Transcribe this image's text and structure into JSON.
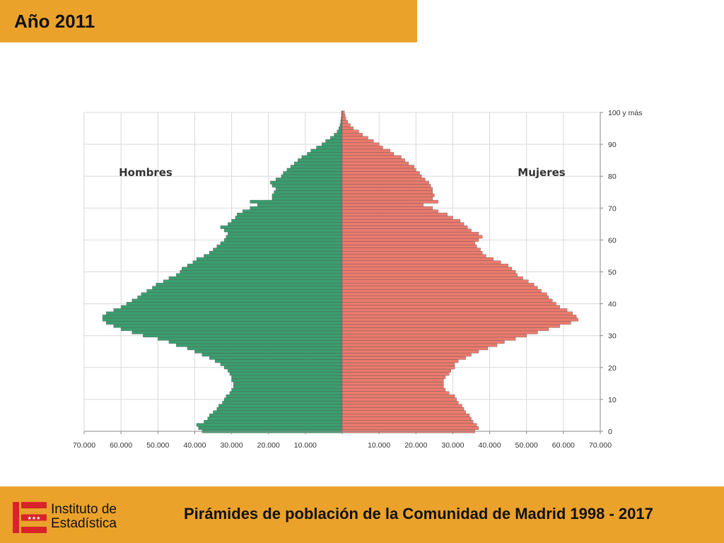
{
  "header": {
    "title": "Año 2011"
  },
  "footer": {
    "caption": "Pirámides de población de la Comunidad de Madrid  1998 - 2017",
    "logo_line1": "Instituto de",
    "logo_line2": "Estadística"
  },
  "colors": {
    "banner": "#eba22b",
    "men": "#3a9e6e",
    "women": "#ec7a6d",
    "bar_edge": "#555555",
    "grid": "#d9d9d9"
  },
  "chart_data": {
    "type": "bar",
    "orientation": "horizontal",
    "subtype": "population-pyramid",
    "title": "",
    "labels": {
      "left": "Hombres",
      "right": "Mujeres"
    },
    "y_axis": {
      "position": "right",
      "min": 0,
      "max": 100,
      "ticks": [
        0,
        10,
        20,
        30,
        40,
        50,
        60,
        70,
        80,
        90,
        100
      ],
      "tick_labels": [
        "0",
        "10",
        "20",
        "30",
        "40",
        "50",
        "60",
        "70",
        "80",
        "90",
        "100 y más"
      ]
    },
    "x_axis": {
      "max": 70000,
      "ticks": [
        70000,
        60000,
        50000,
        40000,
        30000,
        20000,
        10000,
        0,
        10000,
        20000,
        30000,
        40000,
        50000,
        60000,
        70000
      ],
      "tick_labels": [
        "70.000",
        "60.000",
        "50.000",
        "40.000",
        "30.000",
        "20.000",
        "10.000",
        "",
        "10.000",
        "20.000",
        "30.000",
        "40.000",
        "50.000",
        "60.000",
        "70.000"
      ]
    },
    "grid": true,
    "ages": [
      0,
      1,
      2,
      3,
      4,
      5,
      6,
      7,
      8,
      9,
      10,
      11,
      12,
      13,
      14,
      15,
      16,
      17,
      18,
      19,
      20,
      21,
      22,
      23,
      24,
      25,
      26,
      27,
      28,
      29,
      30,
      31,
      32,
      33,
      34,
      35,
      36,
      37,
      38,
      39,
      40,
      41,
      42,
      43,
      44,
      45,
      46,
      47,
      48,
      49,
      50,
      51,
      52,
      53,
      54,
      55,
      56,
      57,
      58,
      59,
      60,
      61,
      62,
      63,
      64,
      65,
      66,
      67,
      68,
      69,
      70,
      71,
      72,
      73,
      74,
      75,
      76,
      77,
      78,
      79,
      80,
      81,
      82,
      83,
      84,
      85,
      86,
      87,
      88,
      89,
      90,
      91,
      92,
      93,
      94,
      95,
      96,
      97,
      98,
      99,
      100
    ],
    "series": [
      {
        "name": "Hombres",
        "values": [
          38000,
          39000,
          39500,
          37500,
          36500,
          36000,
          35000,
          34000,
          33500,
          32500,
          32000,
          31500,
          30500,
          30000,
          29500,
          29500,
          30000,
          30000,
          30500,
          31000,
          32000,
          33000,
          34500,
          36000,
          38000,
          40000,
          42000,
          45000,
          47000,
          50000,
          54000,
          57000,
          60000,
          62000,
          64000,
          65000,
          65000,
          64000,
          62000,
          60000,
          58500,
          57000,
          55500,
          54500,
          53000,
          51500,
          50500,
          48500,
          47000,
          45000,
          44000,
          43500,
          42000,
          40500,
          39500,
          37500,
          36000,
          35000,
          34000,
          33000,
          32000,
          31500,
          31000,
          32000,
          33000,
          31000,
          30000,
          29000,
          28500,
          27000,
          25000,
          23000,
          25000,
          19000,
          19000,
          18500,
          18000,
          19000,
          19500,
          18000,
          16500,
          16000,
          15000,
          14000,
          13000,
          12000,
          11000,
          9500,
          8500,
          7000,
          5500,
          4500,
          3200,
          2200,
          1400,
          900,
          600,
          400,
          300,
          200,
          200
        ]
      },
      {
        "name": "Mujeres",
        "values": [
          36000,
          37000,
          36500,
          35500,
          35000,
          34500,
          33500,
          33000,
          32500,
          31500,
          31000,
          30500,
          29000,
          28000,
          27500,
          27500,
          27500,
          28000,
          29000,
          29500,
          30500,
          30500,
          31500,
          33500,
          35000,
          37000,
          39500,
          42000,
          44000,
          47000,
          50000,
          53000,
          56000,
          59000,
          62000,
          64000,
          63500,
          62500,
          61000,
          59000,
          58000,
          57000,
          56000,
          55500,
          54000,
          53000,
          52000,
          50500,
          49000,
          47500,
          47000,
          46000,
          45000,
          43000,
          41000,
          39000,
          38000,
          37500,
          36500,
          36000,
          37000,
          38000,
          37000,
          35000,
          34000,
          33000,
          32000,
          30000,
          28500,
          26000,
          24500,
          22000,
          26000,
          24500,
          25000,
          24500,
          24500,
          24000,
          23500,
          22500,
          21500,
          21000,
          20000,
          19500,
          18000,
          17000,
          16000,
          14000,
          13000,
          11000,
          10000,
          8500,
          7000,
          5500,
          4500,
          3000,
          2200,
          1500,
          1000,
          800,
          600
        ]
      }
    ]
  }
}
